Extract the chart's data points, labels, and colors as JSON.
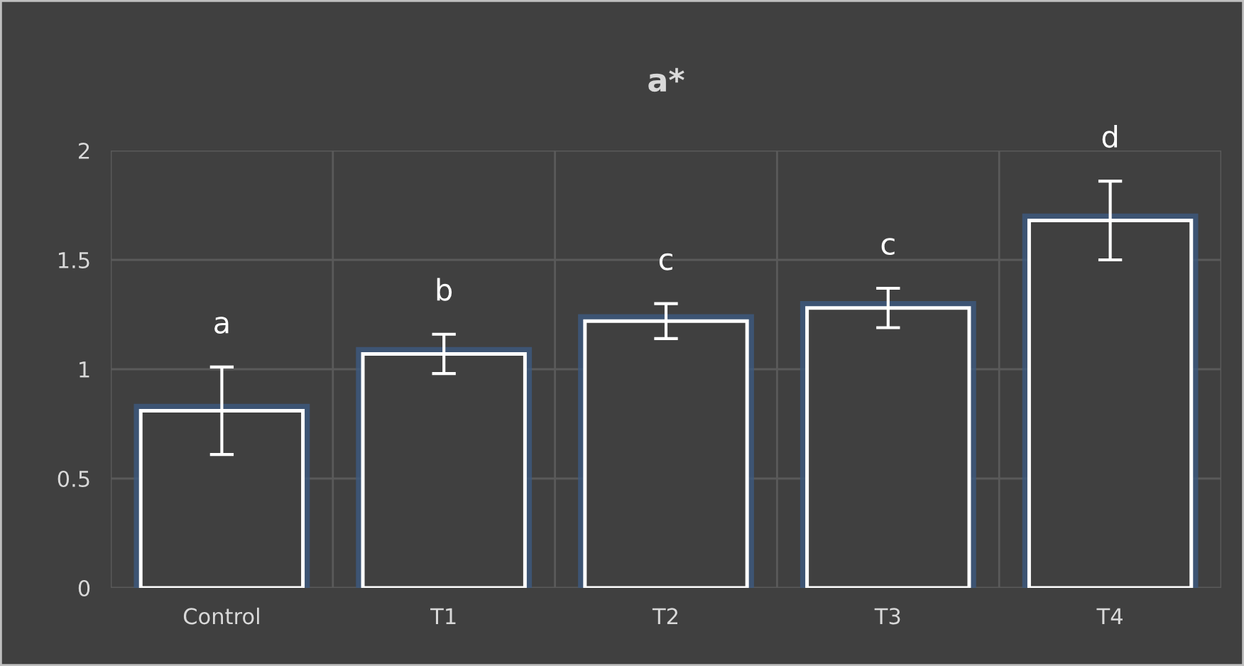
{
  "chart_data": {
    "type": "bar",
    "title": "a*",
    "categories": [
      "Control",
      "T1",
      "T2",
      "T3",
      "T4"
    ],
    "values": [
      0.81,
      1.07,
      1.22,
      1.28,
      1.68
    ],
    "errors": [
      0.2,
      0.09,
      0.08,
      0.09,
      0.18
    ],
    "color": "#ffffff",
    "ylim": [
      0,
      2
    ],
    "yticks": [
      0,
      0.5,
      1,
      1.5,
      2
    ],
    "grid": true,
    "annotations": [
      "a",
      "b",
      "c",
      "c",
      "d"
    ]
  }
}
